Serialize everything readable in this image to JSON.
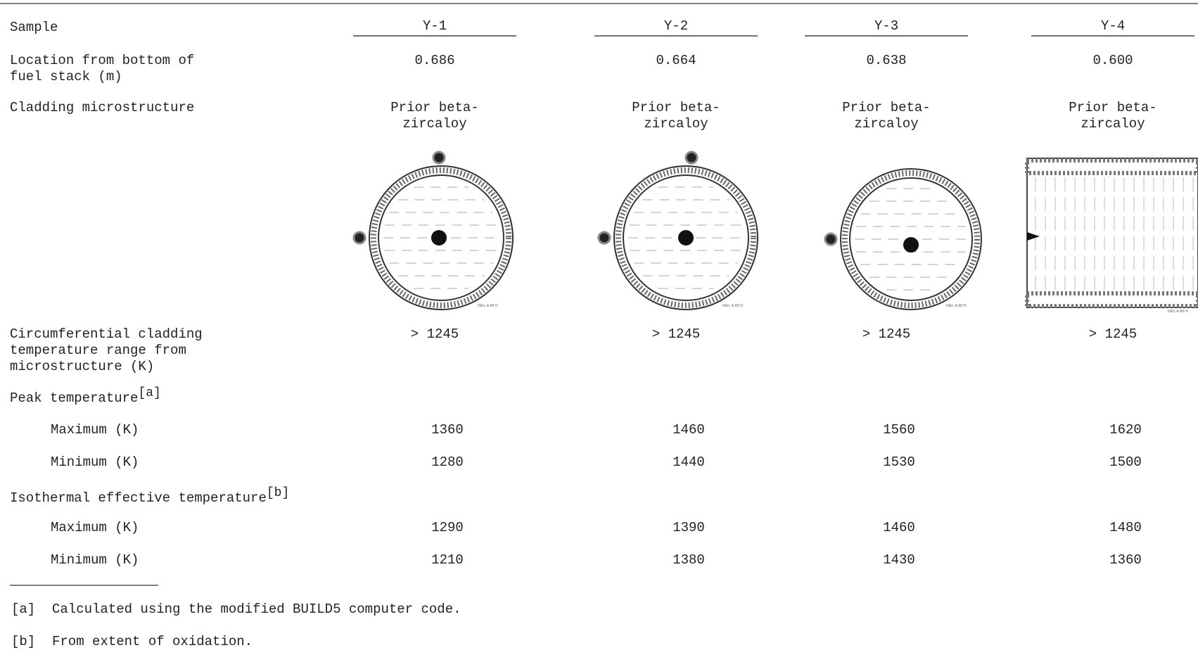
{
  "table": {
    "header_label": "Sample",
    "columns": [
      "Y-1",
      "Y-2",
      "Y-3",
      "Y-4"
    ],
    "rows": [
      {
        "label": "Location from bottom of fuel stack (m)",
        "values": [
          "0.686",
          "0.664",
          "0.638",
          "0.600"
        ]
      },
      {
        "label": "Cladding microstructure",
        "values": [
          "Prior beta-zircaloy",
          "Prior beta-zircaloy",
          "Prior beta-zircaloy",
          "Prior beta-zircaloy"
        ]
      },
      {
        "label": "Circumferential cladding temperature range from microstructure (K)",
        "values": [
          "> 1245",
          "> 1245",
          "> 1245",
          "> 1245"
        ]
      }
    ],
    "figure_ids": [
      "INEL-A-8072",
      "INEL-A-8073",
      "INEL-A-8075",
      "INEL-A-8074"
    ],
    "sections": [
      {
        "label": "Peak temperature",
        "note": "[a]",
        "rows": [
          {
            "label": "Maximum (K)",
            "values": [
              "1360",
              "1460",
              "1560",
              "1620"
            ]
          },
          {
            "label": "Minimum (K)",
            "values": [
              "1280",
              "1440",
              "1530",
              "1500"
            ]
          }
        ]
      },
      {
        "label": "Isothermal effective temperature",
        "note": "[b]",
        "rows": [
          {
            "label": "Maximum (K)",
            "values": [
              "1290",
              "1390",
              "1460",
              "1480"
            ]
          },
          {
            "label": "Minimum (K)",
            "values": [
              "1210",
              "1380",
              "1430",
              "1360"
            ]
          }
        ]
      }
    ]
  },
  "footnotes": [
    {
      "mark": "[a]",
      "text": "Calculated using the modified BUILD5 computer code."
    },
    {
      "mark": "[b]",
      "text": "From extent of oxidation."
    }
  ]
}
